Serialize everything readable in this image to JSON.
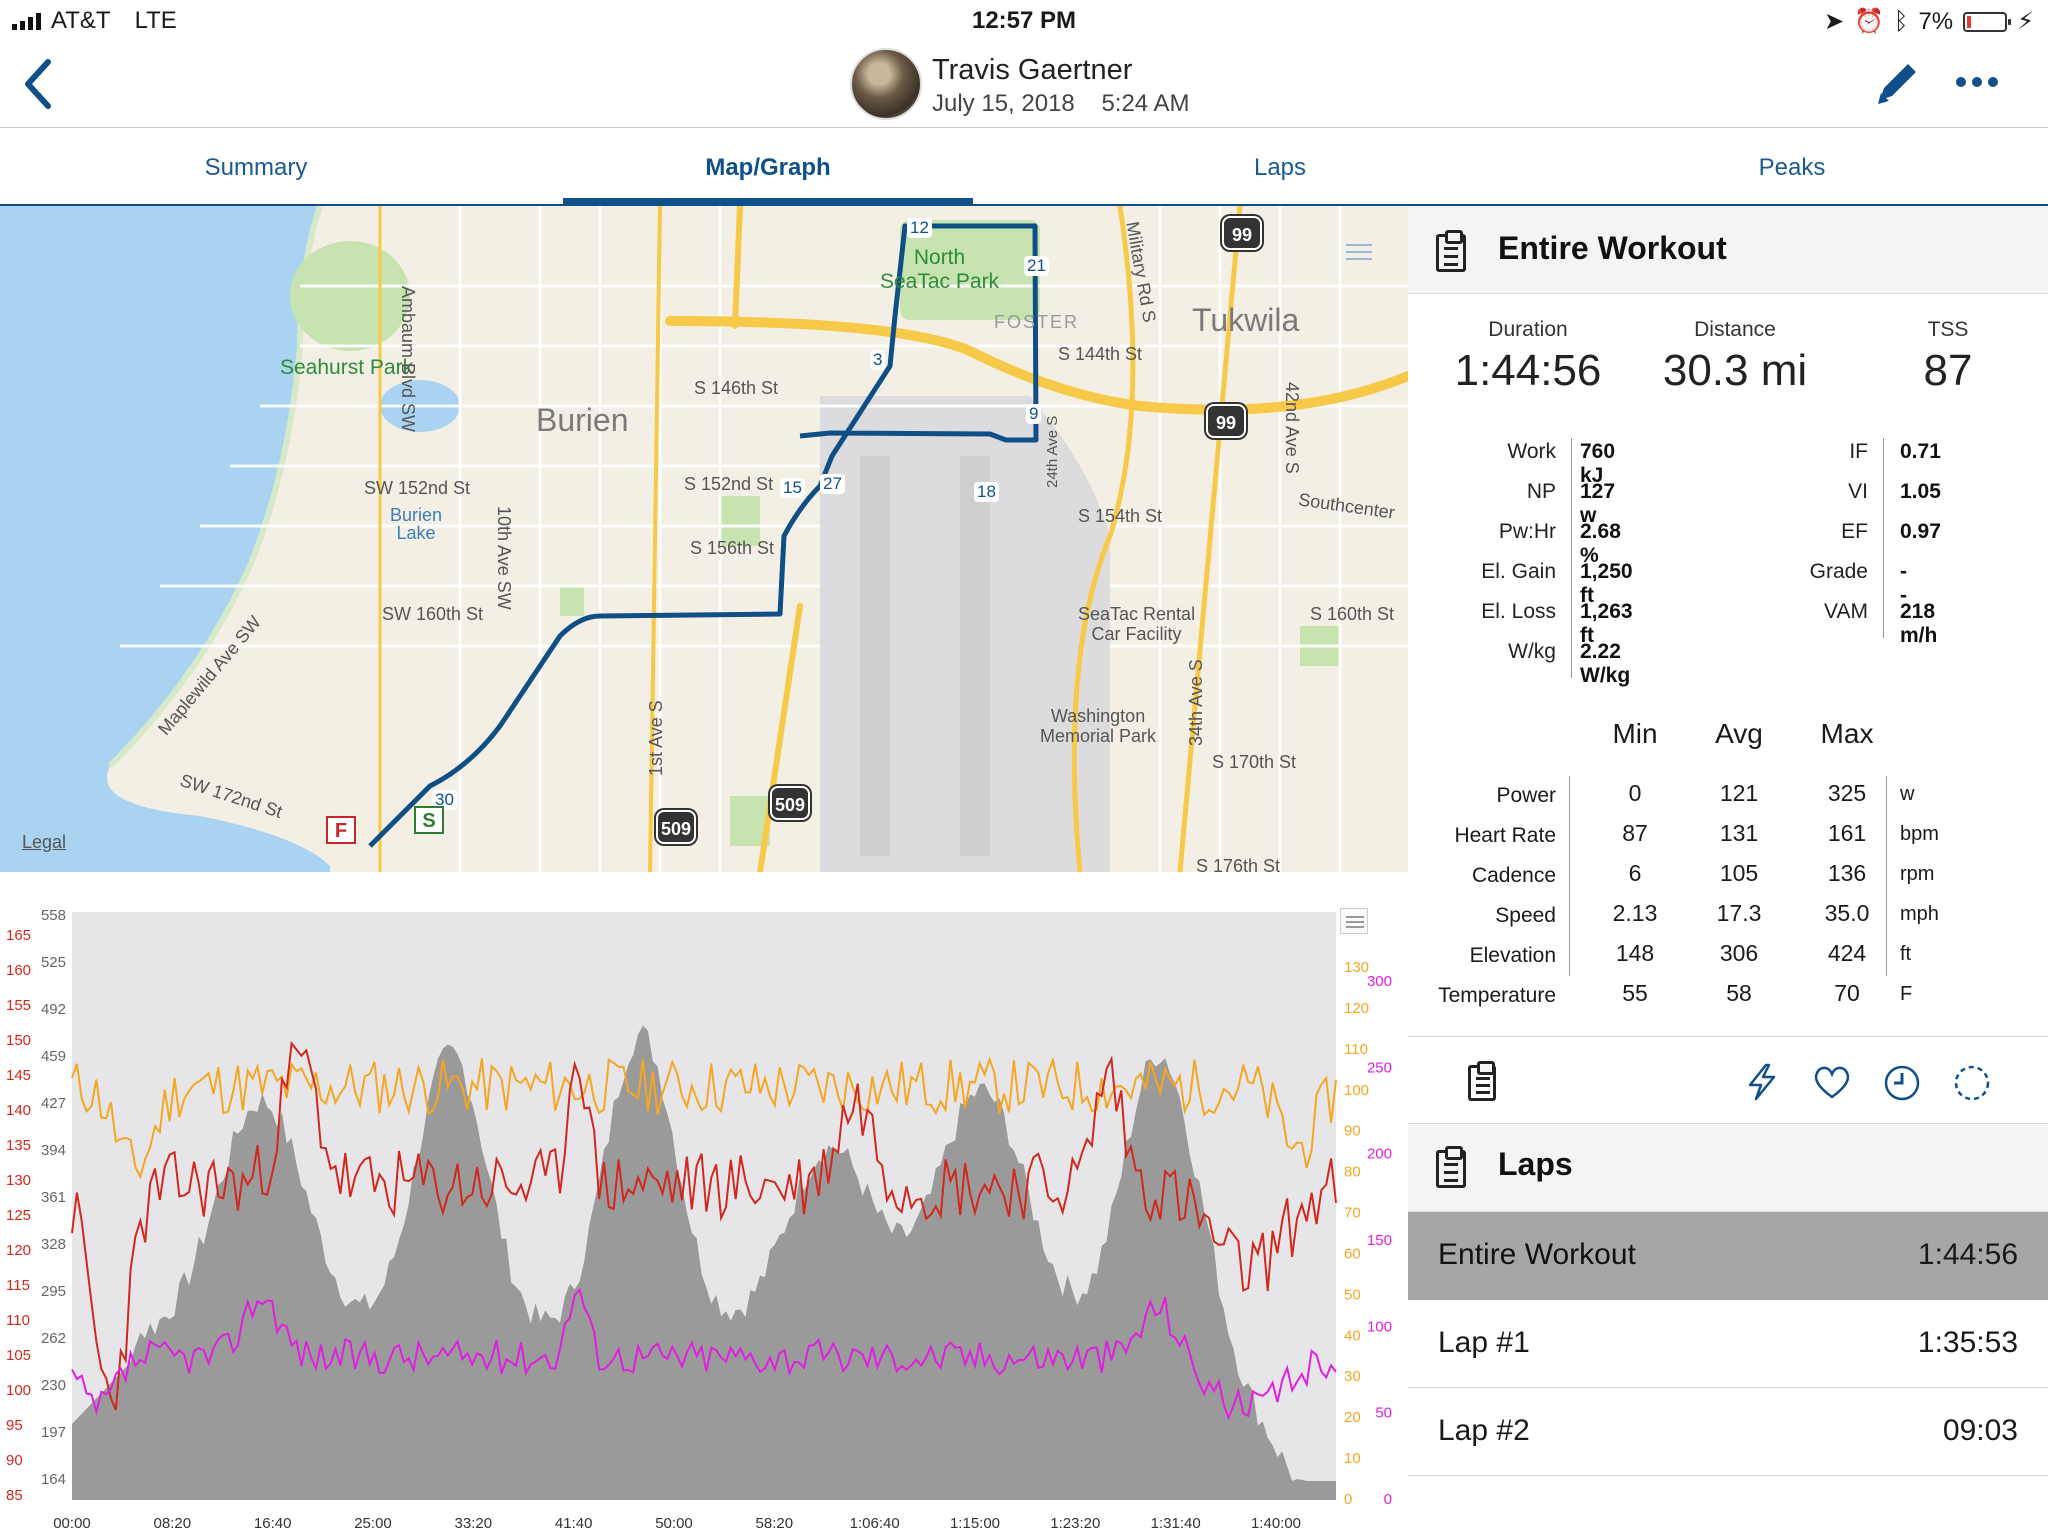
{
  "status_bar": {
    "carrier": "AT&T",
    "network": "LTE",
    "time": "12:57 PM",
    "battery_percent": "7%"
  },
  "header": {
    "user_name": "Travis Gaertner",
    "workout_datetime": "July 15, 2018    5:24 AM"
  },
  "tabs": [
    {
      "label": "Summary",
      "active": false
    },
    {
      "label": "Map/Graph",
      "active": true
    },
    {
      "label": "Laps",
      "active": false
    },
    {
      "label": "Peaks",
      "active": false
    }
  ],
  "map": {
    "labels": {
      "seahurst_park": "Seahurst Park",
      "burien": "Burien",
      "tukwila": "Tukwila",
      "north_seatac_park": "North\nSeaTac Park",
      "foster": "FOSTER",
      "burien_lake": "Burien\nLake",
      "seatac_rental": "SeaTac Rental\nCar Facility",
      "washington_memorial_park": "Washington\nMemorial Park",
      "southcenter": "Southcenter",
      "ambaum": "Ambaum Blvd SW",
      "military_rd": "Military Rd S",
      "s_146th": "S 146th St",
      "s_144th": "S 144th St",
      "sw_152nd": "SW 152nd St",
      "s_152nd": "S 152nd St",
      "s_154th": "S 154th St",
      "s_156th": "S 156th St",
      "sw_160th": "SW 160th St",
      "s_160th": "S 160th St",
      "s_170th": "S 170th St",
      "s_176th": "S 176th St",
      "sw_172nd": "SW 172nd St",
      "maplewild": "Maplewild Ave SW",
      "tenth_ave": "10th Ave SW",
      "first_ave": "1st Ave S",
      "thirty_fourth": "34th Ave S",
      "forty_second": "42nd Ave S",
      "twenty_fourth": "24th Ave S"
    },
    "route_markers": [
      "12",
      "21",
      "3",
      "9",
      "15",
      "27",
      "18",
      "30"
    ],
    "start_label": "S",
    "finish_label": "F",
    "highways": [
      "99",
      "99",
      "509",
      "509"
    ],
    "legal": "Legal"
  },
  "chart": {
    "left_axis_hr": [
      "165",
      "160",
      "155",
      "150",
      "145",
      "140",
      "135",
      "130",
      "125",
      "120",
      "115",
      "110",
      "105",
      "100",
      "95",
      "90",
      "85"
    ],
    "left_axis_elev": [
      "558",
      "525",
      "492",
      "459",
      "427",
      "394",
      "361",
      "328",
      "295",
      "262",
      "230",
      "197",
      "164"
    ],
    "right_axis_cadence": [
      "130",
      "120",
      "110",
      "100",
      "90",
      "80",
      "70",
      "60",
      "50",
      "40",
      "30",
      "20",
      "10",
      "0"
    ],
    "right_axis_power": [
      "300",
      "250",
      "200",
      "150",
      "100",
      "50",
      "0"
    ],
    "x_axis_labels": [
      "00:00",
      "08:20",
      "16:40",
      "25:00",
      "33:20",
      "41:40",
      "50:00",
      "58:20",
      "1:06:40",
      "1:15:00",
      "1:23:20",
      "1:31:40",
      "1:40:00"
    ],
    "colors": {
      "cadence": "#f5a623",
      "heart_rate": "#d0281e",
      "power": "#e020e0",
      "elevation": "#8c8c8c"
    }
  },
  "entire_workout": {
    "title": "Entire Workout",
    "duration": {
      "label": "Duration",
      "value": "1:44:56"
    },
    "distance": {
      "label": "Distance",
      "value": "30.3 mi"
    },
    "tss": {
      "label": "TSS",
      "value": "87"
    },
    "metrics_left": [
      {
        "label": "Work",
        "value": "760 kJ"
      },
      {
        "label": "NP",
        "value": "127 w"
      },
      {
        "label": "Pw:Hr",
        "value": "2.68 %"
      },
      {
        "label": "El. Gain",
        "value": "1,250 ft"
      },
      {
        "label": "El. Loss",
        "value": "1,263 ft"
      },
      {
        "label": "W/kg",
        "value": "2.22 W/kg"
      }
    ],
    "metrics_right": [
      {
        "label": "IF",
        "value": "0.71"
      },
      {
        "label": "VI",
        "value": "1.05"
      },
      {
        "label": "EF",
        "value": "0.97"
      },
      {
        "label": "Grade",
        "value": "--"
      },
      {
        "label": "VAM",
        "value": "218 m/h"
      }
    ],
    "minmax_headers": [
      "Min",
      "Avg",
      "Max"
    ],
    "minmax_rows": [
      {
        "label": "Power",
        "min": "0",
        "avg": "121",
        "max": "325",
        "unit": "w"
      },
      {
        "label": "Heart Rate",
        "min": "87",
        "avg": "131",
        "max": "161",
        "unit": "bpm"
      },
      {
        "label": "Cadence",
        "min": "6",
        "avg": "105",
        "max": "136",
        "unit": "rpm"
      },
      {
        "label": "Speed",
        "min": "2.13",
        "avg": "17.3",
        "max": "35.0",
        "unit": "mph"
      },
      {
        "label": "Elevation",
        "min": "148",
        "avg": "306",
        "max": "424",
        "unit": "ft"
      },
      {
        "label": "Temperature",
        "min": "55",
        "avg": "58",
        "max": "70",
        "unit": "F"
      }
    ]
  },
  "laps": {
    "title": "Laps",
    "rows": [
      {
        "label": "Entire Workout",
        "value": "1:44:56",
        "selected": true
      },
      {
        "label": "Lap #1",
        "value": "1:35:53",
        "selected": false
      },
      {
        "label": "Lap #2",
        "value": "09:03",
        "selected": false
      }
    ]
  }
}
